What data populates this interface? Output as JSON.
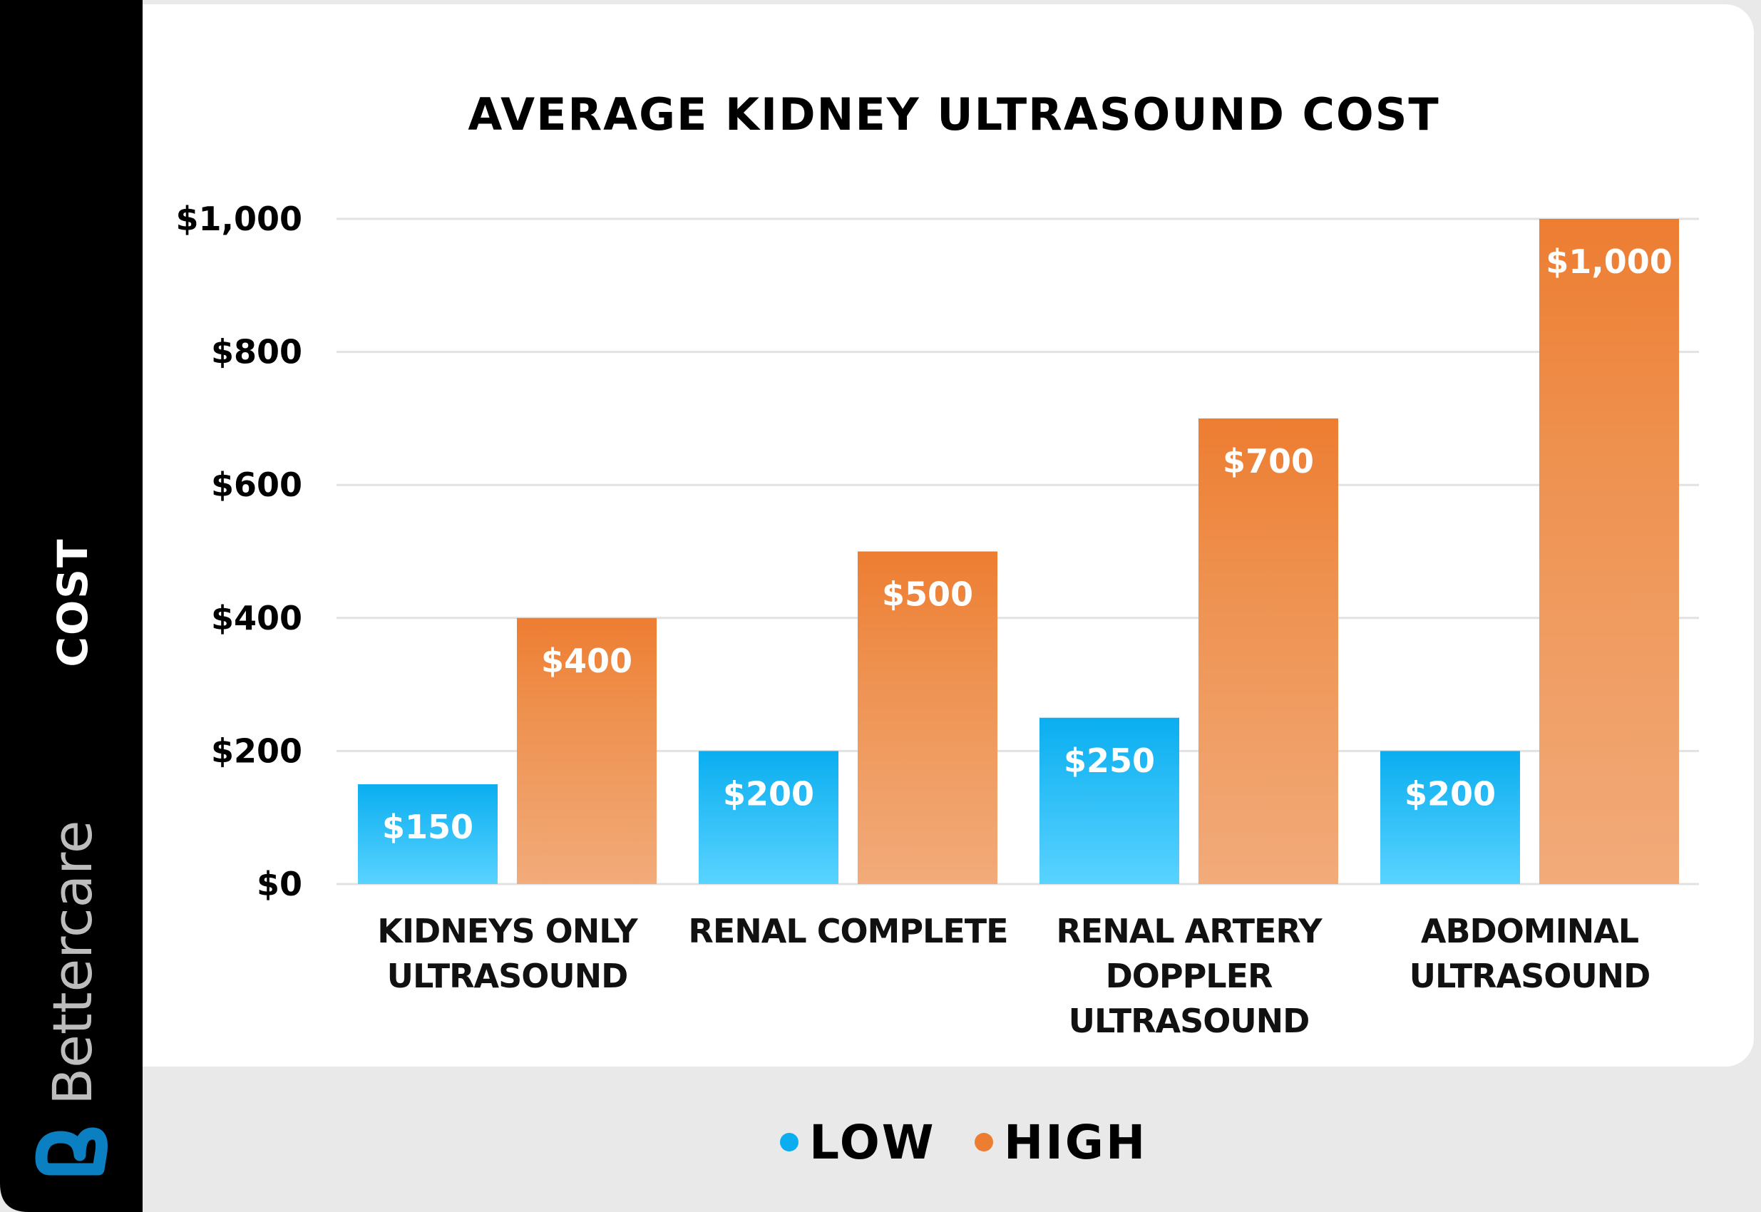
{
  "brand": {
    "name": "Bettercare",
    "logo_color": "#0a7fc1"
  },
  "chart_data": {
    "type": "bar",
    "title": "AVERAGE KIDNEY ULTRASOUND COST",
    "ylabel": "COST",
    "xlabel": "",
    "ylim": [
      0,
      1000
    ],
    "yticks": [
      0,
      200,
      400,
      600,
      800,
      1000
    ],
    "ytick_labels": [
      "$0",
      "$200",
      "$400",
      "$600",
      "$800",
      "$1,000"
    ],
    "grid": true,
    "legend_position": "bottom",
    "categories": [
      [
        "KIDNEYS ONLY",
        "ULTRASOUND"
      ],
      [
        "RENAL COMPLETE"
      ],
      [
        "RENAL ARTERY",
        "DOPPLER",
        "ULTRASOUND"
      ],
      [
        "ABDOMINAL",
        "ULTRASOUND"
      ]
    ],
    "series": [
      {
        "name": "LOW",
        "color": "#0aaef0",
        "values": [
          150,
          200,
          250,
          200
        ],
        "labels": [
          "$150",
          "$200",
          "$250",
          "$200"
        ]
      },
      {
        "name": "HIGH",
        "color": "#ed7d31",
        "values": [
          400,
          500,
          700,
          1000
        ],
        "labels": [
          "$400",
          "$500",
          "$700",
          "$1,000"
        ]
      }
    ]
  }
}
